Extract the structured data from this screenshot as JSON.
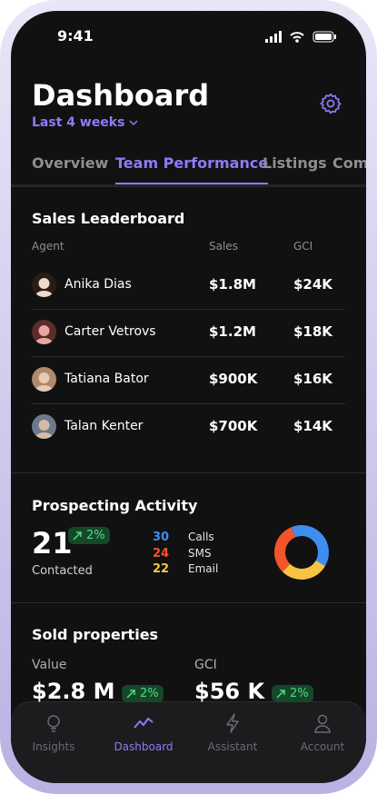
{
  "status": {
    "time": "9:41"
  },
  "header": {
    "title": "Dashboard",
    "period": "Last 4 weeks"
  },
  "tabs": {
    "items": [
      "Overview",
      "Team Performance",
      "Listings",
      "Com"
    ],
    "active": 1
  },
  "leaderboard": {
    "title": "Sales Leaderboard",
    "columns": [
      "Agent",
      "Sales",
      "GCI"
    ],
    "rows": [
      {
        "agent": "Anika Dias",
        "sales": "$1.8M",
        "gci": "$24K"
      },
      {
        "agent": "Carter Vetrovs",
        "sales": "$1.2M",
        "gci": "$18K"
      },
      {
        "agent": "Tatiana Bator",
        "sales": "$900K",
        "gci": "$16K"
      },
      {
        "agent": "Talan Kenter",
        "sales": "$700K",
        "gci": "$14K"
      }
    ]
  },
  "prospecting": {
    "title": "Prospecting Activity",
    "total": 21,
    "change": "2%",
    "total_label": "Contacted",
    "items": [
      {
        "value": 30,
        "label": "Calls",
        "color": "#3d8ef0"
      },
      {
        "value": 24,
        "label": "SMS",
        "color": "#f2552c"
      },
      {
        "value": 22,
        "label": "Email",
        "color": "#f5c443"
      }
    ]
  },
  "sold": {
    "title": "Sold properties",
    "metrics": [
      {
        "label": "Value",
        "value": "$2.8 M",
        "change": "2%"
      },
      {
        "label": "GCI",
        "value": "$56 K",
        "change": "2%"
      }
    ]
  },
  "nav": {
    "items": [
      "Insights",
      "Dashboard",
      "Assistant",
      "Account"
    ],
    "active": 1
  }
}
